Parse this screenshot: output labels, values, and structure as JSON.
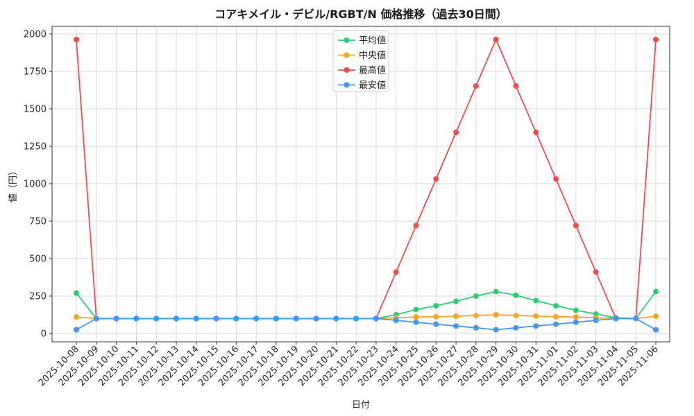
{
  "chart_data": {
    "type": "line",
    "title": "コアキメイル・デビル/RGBT/N 価格推移（過去30日間）",
    "xlabel": "日付",
    "ylabel": "値（円）",
    "ylim": [
      0,
      2000
    ],
    "yticks": [
      0,
      250,
      500,
      750,
      1000,
      1250,
      1500,
      1750,
      2000
    ],
    "grid": true,
    "legend_position": "upper center inside",
    "colors": {
      "grid": "#d9d9d9",
      "axis": "#333333",
      "text": "#262626",
      "legend_border": "#cccccc"
    },
    "categories": [
      "2025-10-08",
      "2025-10-09",
      "2025-10-10",
      "2025-10-11",
      "2025-10-12",
      "2025-10-13",
      "2025-10-14",
      "2025-10-15",
      "2025-10-16",
      "2025-10-17",
      "2025-10-18",
      "2025-10-19",
      "2025-10-20",
      "2025-10-21",
      "2025-10-22",
      "2025-10-23",
      "2025-10-24",
      "2025-10-25",
      "2025-10-26",
      "2025-10-27",
      "2025-10-28",
      "2025-10-29",
      "2025-10-30",
      "2025-10-31",
      "2025-11-01",
      "2025-11-02",
      "2025-11-03",
      "2025-11-04",
      "2025-11-05",
      "2025-11-06"
    ],
    "series": [
      {
        "name": "平均値",
        "color": "#2ecc71",
        "values": [
          270,
          100,
          100,
          100,
          100,
          100,
          100,
          100,
          100,
          100,
          100,
          100,
          100,
          100,
          100,
          100,
          125,
          160,
          185,
          215,
          250,
          280,
          255,
          220,
          185,
          155,
          130,
          105,
          100,
          280
        ]
      },
      {
        "name": "中央値",
        "color": "#f5a623",
        "values": [
          110,
          100,
          100,
          100,
          100,
          100,
          100,
          100,
          100,
          100,
          100,
          100,
          100,
          100,
          100,
          100,
          105,
          110,
          112,
          115,
          120,
          125,
          120,
          116,
          112,
          110,
          105,
          102,
          100,
          115
        ]
      },
      {
        "name": "最高値",
        "color": "#f14c4c",
        "values": [
          1963,
          100,
          100,
          100,
          100,
          100,
          100,
          100,
          100,
          100,
          100,
          100,
          100,
          100,
          100,
          100,
          410,
          721,
          1032,
          1343,
          1653,
          1963,
          1653,
          1343,
          1032,
          721,
          410,
          100,
          100,
          1963
        ]
      },
      {
        "name": "最安値",
        "color": "#4496f0",
        "values": [
          25,
          100,
          100,
          100,
          100,
          100,
          100,
          100,
          100,
          100,
          100,
          100,
          100,
          100,
          100,
          100,
          88,
          75,
          62,
          50,
          38,
          25,
          38,
          50,
          62,
          75,
          88,
          100,
          100,
          25
        ]
      }
    ]
  }
}
